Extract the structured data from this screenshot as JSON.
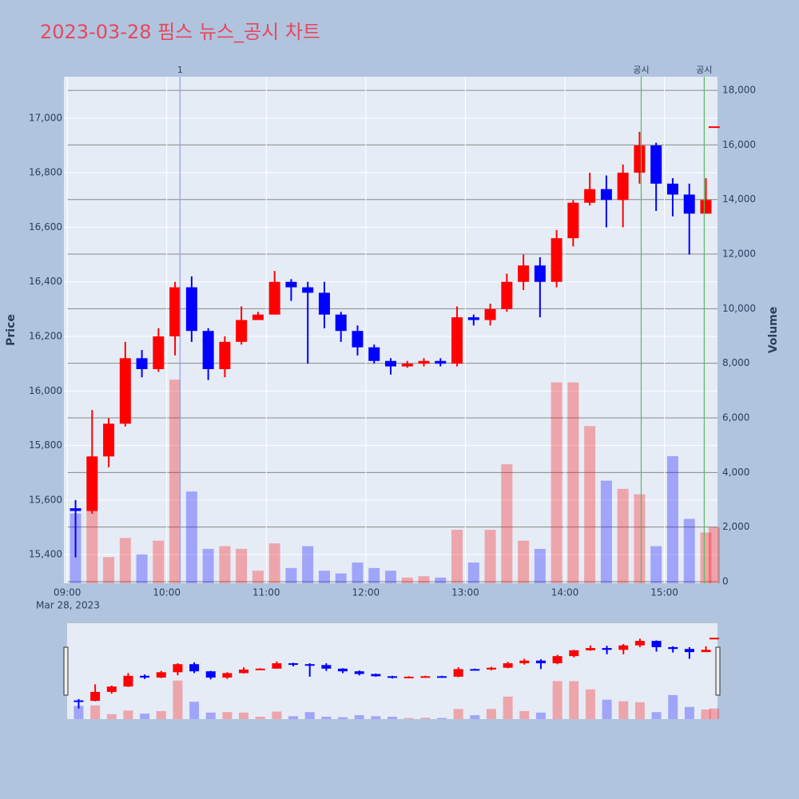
{
  "chart_data": {
    "type": "candlestick",
    "title": "2023-03-28 핌스 뉴스_공시 차트",
    "yaxis_title": "Price",
    "y2axis_title": "Volume",
    "x_date_label": "Mar 28, 2023",
    "increasing_color": "#ff0000",
    "decreasing_color": "#0000ff",
    "x": [
      "09:00",
      "09:10",
      "09:20",
      "09:30",
      "09:40",
      "09:50",
      "10:00",
      "10:10",
      "10:20",
      "10:30",
      "10:40",
      "10:50",
      "11:00",
      "11:10",
      "11:20",
      "11:30",
      "11:40",
      "11:50",
      "12:00",
      "12:10",
      "12:20",
      "12:30",
      "12:40",
      "12:50",
      "13:00",
      "13:10",
      "13:20",
      "13:30",
      "13:40",
      "13:50",
      "14:00",
      "14:10",
      "14:20",
      "14:30",
      "14:40",
      "14:50",
      "15:00",
      "15:10",
      "15:20",
      "15:30"
    ],
    "open": [
      15570,
      15560,
      15760,
      15880,
      16120,
      16080,
      16200,
      16380,
      16220,
      16080,
      16180,
      16260,
      16280,
      16400,
      16380,
      16360,
      16280,
      16220,
      16160,
      16110,
      16090,
      16100,
      16110,
      16100,
      16270,
      16260,
      16300,
      16400,
      16460,
      16400,
      16560,
      16690,
      16740,
      16700,
      16800,
      16900,
      16760,
      16720,
      16650,
      16970
    ],
    "high": [
      15600,
      15930,
      15900,
      16180,
      16150,
      16230,
      16400,
      16420,
      16230,
      16200,
      16310,
      16290,
      16440,
      16410,
      16400,
      16400,
      16290,
      16240,
      16170,
      16120,
      16110,
      16120,
      16120,
      16310,
      16280,
      16320,
      16430,
      16500,
      16490,
      16590,
      16700,
      16800,
      16790,
      16830,
      16950,
      16910,
      16780,
      16760,
      16780,
      16970
    ],
    "low": [
      15390,
      15550,
      15720,
      15870,
      16050,
      16070,
      16130,
      16180,
      16040,
      16050,
      16170,
      16260,
      16280,
      16330,
      16100,
      16230,
      16180,
      16130,
      16100,
      16060,
      16085,
      16090,
      16090,
      16090,
      16240,
      16240,
      16290,
      16370,
      16270,
      16380,
      16530,
      16680,
      16600,
      16600,
      16760,
      16660,
      16640,
      16500,
      16650,
      16970
    ],
    "close": [
      15560,
      15760,
      15880,
      16120,
      16080,
      16200,
      16380,
      16220,
      16080,
      16180,
      16260,
      16280,
      16400,
      16380,
      16360,
      16280,
      16220,
      16160,
      16110,
      16090,
      16100,
      16110,
      16100,
      16270,
      16260,
      16300,
      16400,
      16460,
      16400,
      16560,
      16690,
      16740,
      16700,
      16800,
      16900,
      16760,
      16720,
      16650,
      16700,
      16970
    ],
    "volume": [
      2500,
      2600,
      900,
      1600,
      1000,
      1500,
      7400,
      3300,
      1200,
      1300,
      1200,
      400,
      1400,
      500,
      1300,
      400,
      300,
      700,
      500,
      400,
      150,
      200,
      150,
      1900,
      700,
      1900,
      4300,
      1500,
      1200,
      7300,
      7300,
      5700,
      3700,
      3400,
      3200,
      1300,
      4600,
      2300,
      1800,
      2000
    ],
    "xlim": [
      "08:58",
      "15:32"
    ],
    "xticks": [
      "09:00",
      "10:00",
      "11:00",
      "12:00",
      "13:00",
      "14:00",
      "15:00"
    ],
    "ylim": [
      15295,
      17152
    ],
    "yticks": [
      {
        "value": 15400,
        "label": "15,400"
      },
      {
        "value": 15600,
        "label": "15,600"
      },
      {
        "value": 15800,
        "label": "15,800"
      },
      {
        "value": 16000,
        "label": "16,000"
      },
      {
        "value": 16200,
        "label": "16,200"
      },
      {
        "value": 16400,
        "label": "16,400"
      },
      {
        "value": 16600,
        "label": "16,600"
      },
      {
        "value": 16800,
        "label": "16,800"
      },
      {
        "value": 17000,
        "label": "17,000"
      }
    ],
    "y2lim": [
      -60,
      18500
    ],
    "y2ticks": [
      0,
      {
        "value": 2000,
        "label": "2,000"
      },
      {
        "value": 4000,
        "label": "4,000"
      },
      {
        "value": 6000,
        "label": "6,000"
      },
      {
        "value": 8000,
        "label": "8,000"
      },
      {
        "value": 10000,
        "label": "10,000"
      },
      {
        "value": 12000,
        "label": "12,000"
      },
      {
        "value": 14000,
        "label": "14,000"
      },
      {
        "value": 16000,
        "label": "16,000"
      },
      {
        "value": 18000,
        "label": "18,000"
      }
    ],
    "vlines": [
      {
        "x": "10:08",
        "label": "1",
        "color": "#8da0e8"
      },
      {
        "x": "14:46",
        "label": "공시",
        "color": "#5cb85c"
      },
      {
        "x": "15:24",
        "label": "공시",
        "color": "#5cb85c"
      }
    ]
  }
}
